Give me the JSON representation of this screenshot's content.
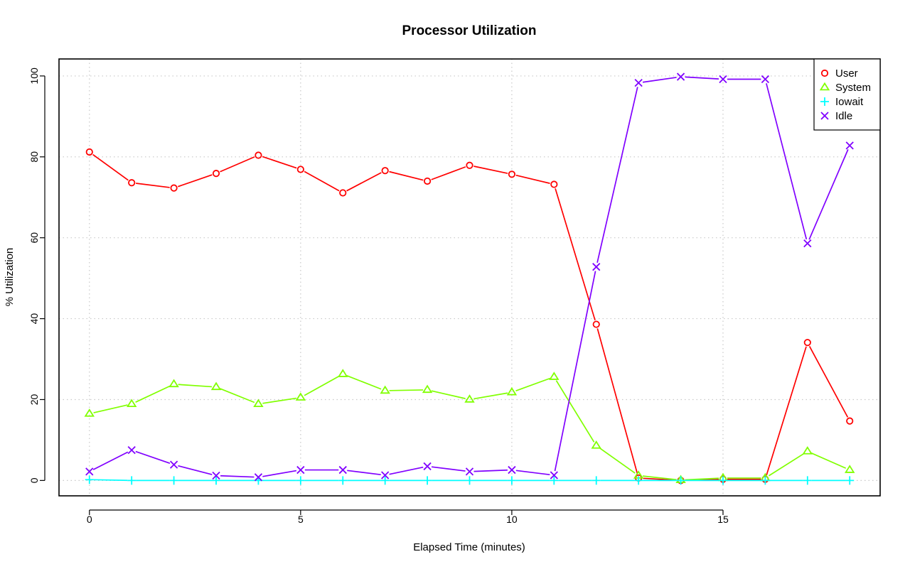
{
  "chart_data": {
    "type": "line",
    "title": "Processor Utilization",
    "xlabel": "Elapsed Time (minutes)",
    "ylabel": "% Utilization",
    "xlim": [
      -0.72,
      18.72
    ],
    "ylim": [
      -3.8,
      104.2
    ],
    "x_ticks": [
      0,
      5,
      10,
      15
    ],
    "y_ticks": [
      0,
      20,
      40,
      60,
      80,
      100
    ],
    "grid": true,
    "legend_position": "top-right",
    "x": [
      0,
      1,
      2,
      3,
      4,
      5,
      6,
      7,
      8,
      9,
      10,
      11,
      12,
      13,
      14,
      15,
      16,
      17,
      18
    ],
    "series": [
      {
        "name": "User",
        "color": "#ff0000",
        "marker": "circle",
        "values": [
          81.2,
          73.6,
          72.3,
          75.9,
          80.4,
          76.9,
          71.1,
          76.6,
          74.0,
          77.9,
          75.7,
          73.2,
          38.6,
          0.6,
          0.0,
          0.3,
          0.3,
          34.1,
          14.7
        ]
      },
      {
        "name": "System",
        "color": "#80ff00",
        "marker": "triangle",
        "values": [
          16.5,
          18.9,
          23.8,
          23.1,
          18.9,
          20.5,
          26.3,
          22.2,
          22.4,
          20.0,
          21.8,
          25.6,
          8.6,
          1.2,
          0.1,
          0.6,
          0.6,
          7.2,
          2.6
        ]
      },
      {
        "name": "Iowait",
        "color": "#00ffff",
        "marker": "plus",
        "values": [
          0.2,
          0.0,
          0.0,
          0.0,
          0.0,
          0.0,
          0.0,
          0.0,
          0.0,
          0.0,
          0.0,
          0.0,
          0.0,
          0.0,
          0.0,
          0.0,
          0.0,
          0.0,
          0.0
        ]
      },
      {
        "name": "Idle",
        "color": "#8000ff",
        "marker": "x",
        "values": [
          2.2,
          7.5,
          3.9,
          1.2,
          0.8,
          2.6,
          2.6,
          1.3,
          3.5,
          2.2,
          2.6,
          1.3,
          52.8,
          98.3,
          99.8,
          99.2,
          99.2,
          58.6,
          82.8
        ]
      }
    ]
  }
}
